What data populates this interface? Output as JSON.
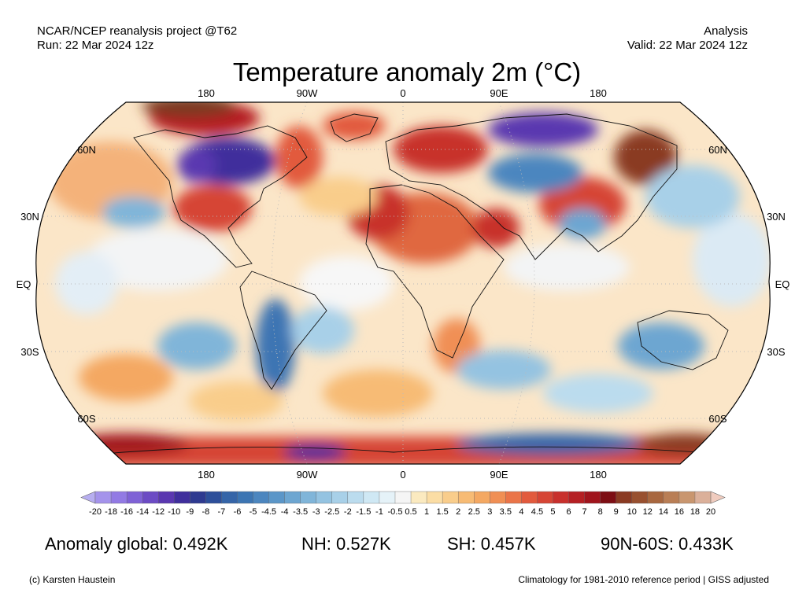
{
  "header": {
    "source": "NCAR/NCEP reanalysis project @T62",
    "run": "Run: 22 Mar 2024 12z",
    "kind": "Analysis",
    "valid": "Valid: 22 Mar 2024 12z"
  },
  "title": "Temperature anomaly 2m (°C)",
  "map": {
    "projection": "Robinson",
    "lon_labels": [
      "180",
      "90W",
      "0",
      "90E",
      "180"
    ],
    "lat_labels": [
      "60N",
      "30N",
      "EQ",
      "30S",
      "60S"
    ],
    "grid_color": "#bbbbbb",
    "ocean_land_colors": {
      "cold_deep": "#3b2a96",
      "warm_deep": "#7a3b20"
    }
  },
  "colorbar": {
    "labels": [
      "-20",
      "-18",
      "-16",
      "-14",
      "-12",
      "-10",
      "-9",
      "-8",
      "-7",
      "-6",
      "-5",
      "-4.5",
      "-4",
      "-3.5",
      "-3",
      "-2.5",
      "-2",
      "-1.5",
      "-1",
      "-0.5",
      "0.5",
      "1",
      "1.5",
      "2",
      "2.5",
      "3",
      "3.5",
      "4",
      "4.5",
      "5",
      "6",
      "7",
      "8",
      "9",
      "10",
      "12",
      "14",
      "16",
      "18",
      "20"
    ],
    "colors": [
      "#b7aef0",
      "#a493eb",
      "#927ae4",
      "#7f62d6",
      "#6c4bc4",
      "#5a37b0",
      "#3f2e9c",
      "#2e3a90",
      "#2d4f9a",
      "#3565a8",
      "#3c75b3",
      "#4c86bf",
      "#5b96c8",
      "#6da6d1",
      "#80b5d9",
      "#94c3e1",
      "#a8d0e8",
      "#bbdcee",
      "#cfe8f4",
      "#e5f2f8",
      "#f5f5f5",
      "#fbeac0",
      "#fbdda4",
      "#f9cd8b",
      "#f7bb74",
      "#f4a862",
      "#f08f54",
      "#ea7448",
      "#e25a3d",
      "#d64535",
      "#c8302c",
      "#b51f23",
      "#a0141c",
      "#7d0e14",
      "#8a3a22",
      "#98502f",
      "#a8673f",
      "#b97e55",
      "#c9966f",
      "#dbb09a",
      "#f0ccbf"
    ]
  },
  "stats": {
    "global": "Anomaly global: 0.492K",
    "nh": "NH: 0.527K",
    "sh": "SH: 0.457K",
    "arctic": "90N-60S: 0.433K"
  },
  "footer": {
    "credit": "(c) Karsten Haustein",
    "note": "Climatology for 1981-2010 reference period | GISS adjusted"
  }
}
